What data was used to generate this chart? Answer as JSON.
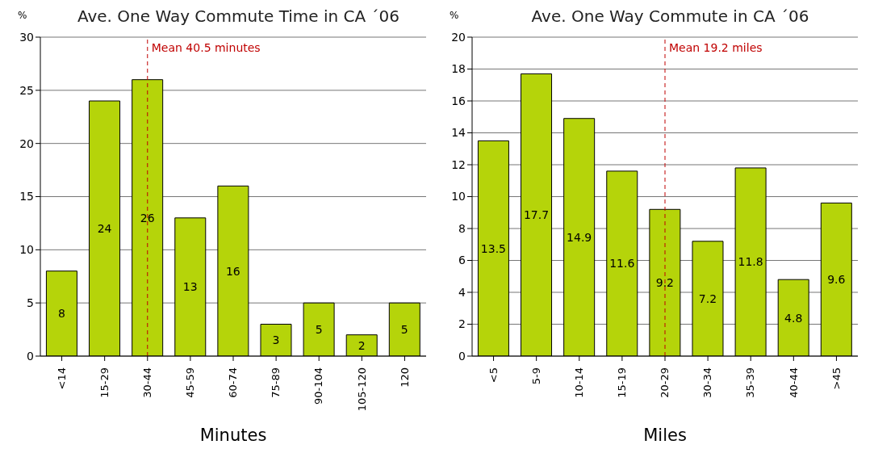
{
  "chart_data": [
    {
      "type": "bar",
      "title": "Ave. One Way Commute Time in CA ´06",
      "xlabel": "Minutes",
      "ylabel": "%",
      "categories": [
        "<14",
        "15-29",
        "30-44",
        "45-59",
        "60-74",
        "75-89",
        "90-104",
        "105-120",
        "120"
      ],
      "values": [
        8,
        24,
        26,
        13,
        16,
        3,
        5,
        2,
        5
      ],
      "color": "#b5d40a",
      "ylim": [
        0,
        30
      ],
      "yticks": [
        0,
        5,
        10,
        15,
        20,
        25,
        30
      ],
      "grid": "y",
      "data_labels": true,
      "legend": false,
      "ref_lines": [
        {
          "axis": "x",
          "value": "30-44",
          "label": "Mean 40.5 minutes",
          "color": "#c00000",
          "line_style": "dashed"
        }
      ]
    },
    {
      "type": "bar",
      "title": "Ave. One Way Commute in CA ´06",
      "xlabel": "Miles",
      "ylabel": "%",
      "categories": [
        "<5",
        "5-9",
        "10-14",
        "15-19",
        "20-29",
        "30-34",
        "35-39",
        "40-44",
        ">45"
      ],
      "values": [
        13.5,
        17.7,
        14.9,
        11.6,
        9.2,
        7.2,
        11.8,
        4.8,
        9.6
      ],
      "color": "#b5d40a",
      "ylim": [
        0,
        20
      ],
      "yticks": [
        0,
        2,
        4,
        6,
        8,
        10,
        12,
        14,
        16,
        18,
        20
      ],
      "grid": "y",
      "data_labels": true,
      "legend": false,
      "ref_lines": [
        {
          "axis": "x",
          "value": "20-29",
          "label": "Mean 19.2 miles",
          "color": "#c00000",
          "line_style": "dashed"
        }
      ]
    }
  ]
}
